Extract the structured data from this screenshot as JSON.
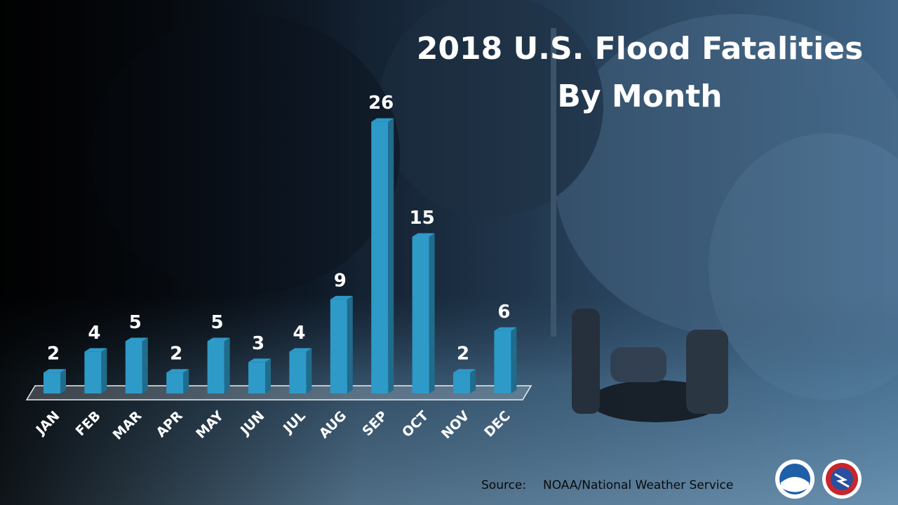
{
  "chart_data": {
    "type": "bar",
    "title": "2018 U.S. Flood Fatalities",
    "subtitle": "By Month",
    "categories": [
      "JAN",
      "FEB",
      "MAR",
      "APR",
      "MAY",
      "JUN",
      "JUL",
      "AUG",
      "SEP",
      "OCT",
      "NOV",
      "DEC"
    ],
    "values": [
      2,
      4,
      5,
      2,
      5,
      3,
      4,
      9,
      26,
      15,
      2,
      6
    ],
    "color": "#2e9ac8",
    "source_label": "Source:",
    "source": "NOAA/National Weather Service"
  }
}
